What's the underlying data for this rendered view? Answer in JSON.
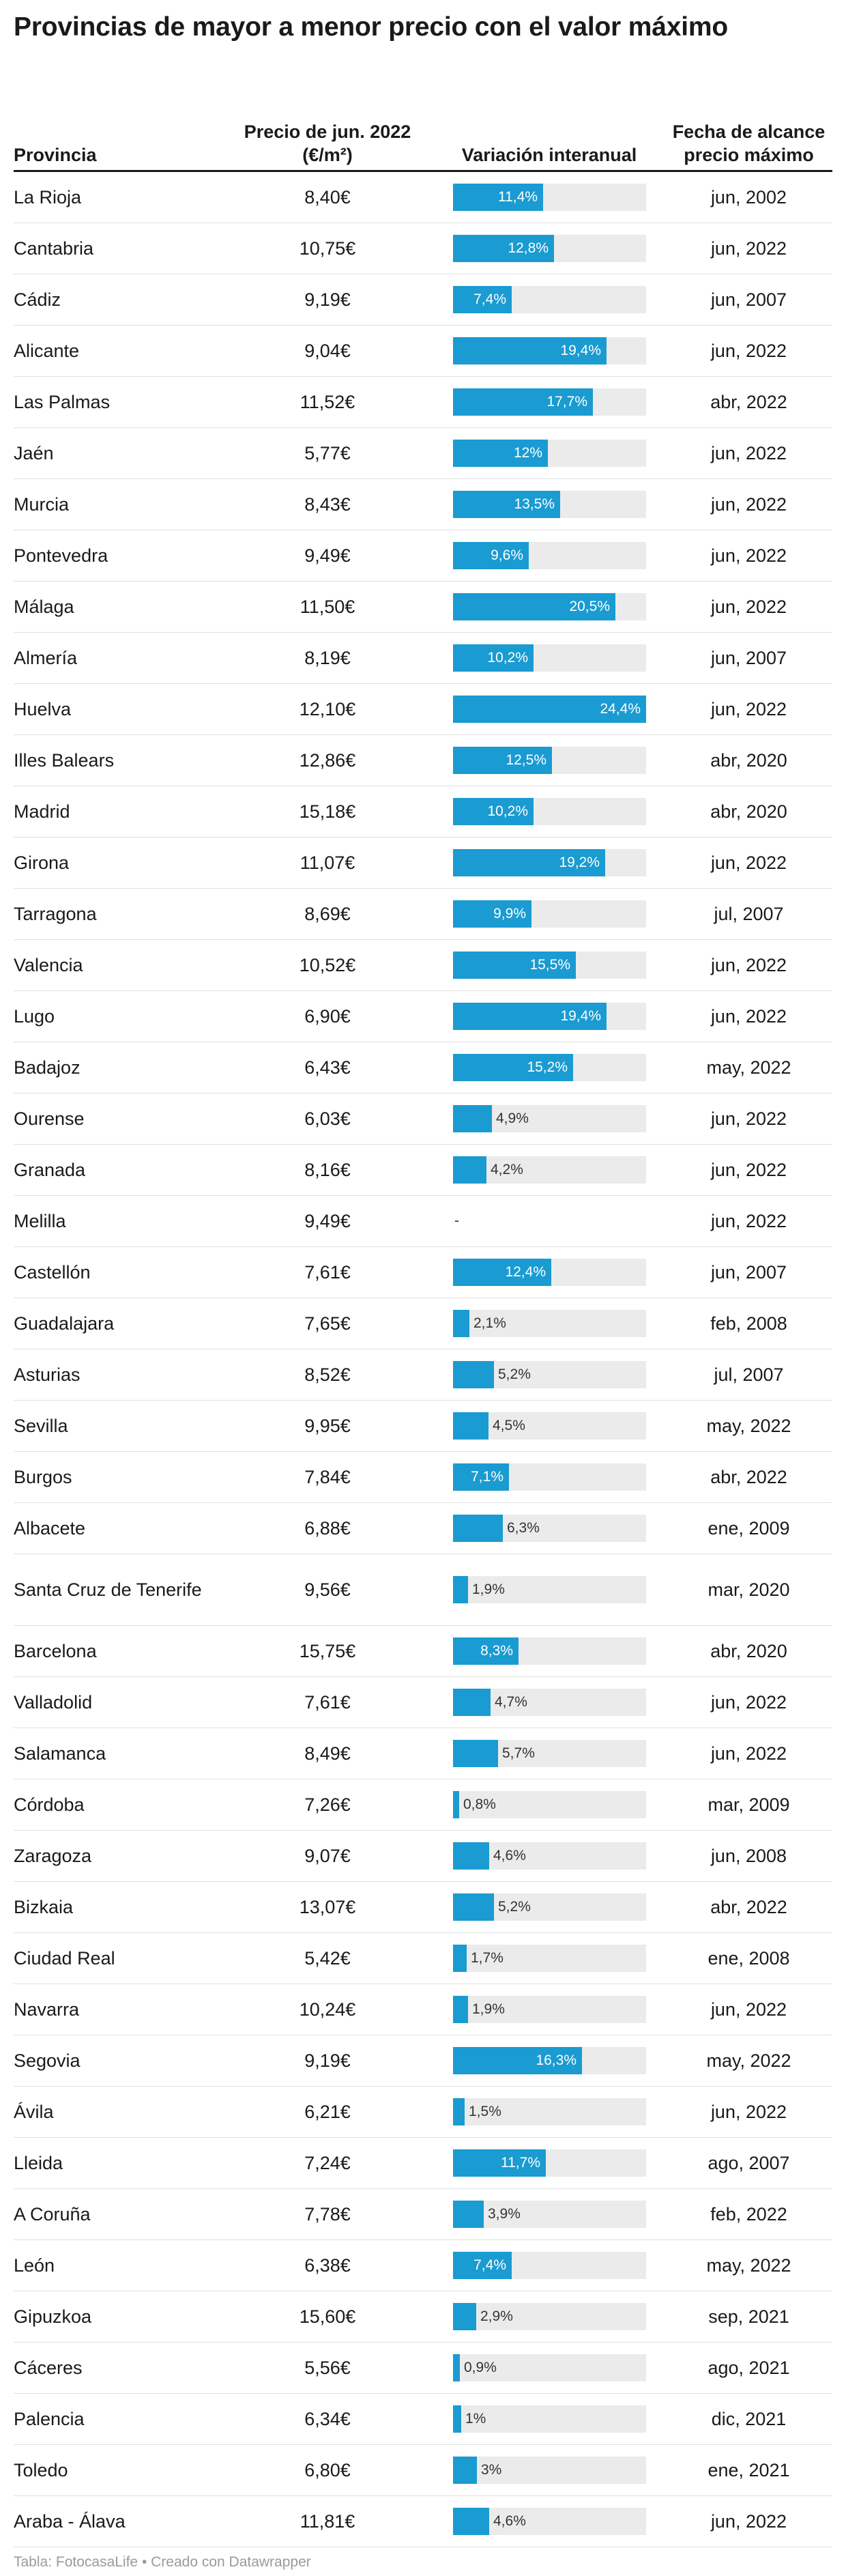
{
  "title": "Provincias de mayor a menor precio con el valor máximo",
  "columns": {
    "provincia": "Provincia",
    "precio": "Precio de jun. 2022 (€/m²)",
    "variacion": "Variación interanual",
    "fecha": "Fecha de alcance precio máximo"
  },
  "footer": "Tabla: FotocasaLife • Creado con Datawrapper",
  "colors": {
    "bar": "#1a9bd1",
    "track": "#ebebeb",
    "text": "#1a1a1a",
    "footer": "#9a9a9a"
  },
  "chart_data": {
    "type": "table",
    "bar_column": "Variación interanual",
    "bar_max": 24.4,
    "rows": [
      {
        "provincia": "La Rioja",
        "precio": "8,40€",
        "variacion": 11.4,
        "variacion_label": "11,4%",
        "fecha": "jun, 2002"
      },
      {
        "provincia": "Cantabria",
        "precio": "10,75€",
        "variacion": 12.8,
        "variacion_label": "12,8%",
        "fecha": "jun, 2022"
      },
      {
        "provincia": "Cádiz",
        "precio": "9,19€",
        "variacion": 7.4,
        "variacion_label": "7,4%",
        "fecha": "jun, 2007"
      },
      {
        "provincia": "Alicante",
        "precio": "9,04€",
        "variacion": 19.4,
        "variacion_label": "19,4%",
        "fecha": "jun, 2022"
      },
      {
        "provincia": "Las Palmas",
        "precio": "11,52€",
        "variacion": 17.7,
        "variacion_label": "17,7%",
        "fecha": "abr, 2022"
      },
      {
        "provincia": "Jaén",
        "precio": "5,77€",
        "variacion": 12,
        "variacion_label": "12%",
        "fecha": "jun, 2022"
      },
      {
        "provincia": "Murcia",
        "precio": "8,43€",
        "variacion": 13.5,
        "variacion_label": "13,5%",
        "fecha": "jun, 2022"
      },
      {
        "provincia": "Pontevedra",
        "precio": "9,49€",
        "variacion": 9.6,
        "variacion_label": "9,6%",
        "fecha": "jun, 2022"
      },
      {
        "provincia": "Málaga",
        "precio": "11,50€",
        "variacion": 20.5,
        "variacion_label": "20,5%",
        "fecha": "jun, 2022"
      },
      {
        "provincia": "Almería",
        "precio": "8,19€",
        "variacion": 10.2,
        "variacion_label": "10,2%",
        "fecha": "jun, 2007"
      },
      {
        "provincia": "Huelva",
        "precio": "12,10€",
        "variacion": 24.4,
        "variacion_label": "24,4%",
        "fecha": "jun, 2022"
      },
      {
        "provincia": "Illes Balears",
        "precio": "12,86€",
        "variacion": 12.5,
        "variacion_label": "12,5%",
        "fecha": "abr, 2020"
      },
      {
        "provincia": "Madrid",
        "precio": "15,18€",
        "variacion": 10.2,
        "variacion_label": "10,2%",
        "fecha": "abr, 2020"
      },
      {
        "provincia": "Girona",
        "precio": "11,07€",
        "variacion": 19.2,
        "variacion_label": "19,2%",
        "fecha": "jun, 2022"
      },
      {
        "provincia": "Tarragona",
        "precio": "8,69€",
        "variacion": 9.9,
        "variacion_label": "9,9%",
        "fecha": "jul, 2007"
      },
      {
        "provincia": "Valencia",
        "precio": "10,52€",
        "variacion": 15.5,
        "variacion_label": "15,5%",
        "fecha": "jun, 2022"
      },
      {
        "provincia": "Lugo",
        "precio": "6,90€",
        "variacion": 19.4,
        "variacion_label": "19,4%",
        "fecha": "jun, 2022"
      },
      {
        "provincia": "Badajoz",
        "precio": "6,43€",
        "variacion": 15.2,
        "variacion_label": "15,2%",
        "fecha": "may, 2022"
      },
      {
        "provincia": "Ourense",
        "precio": "6,03€",
        "variacion": 4.9,
        "variacion_label": "4,9%",
        "fecha": "jun, 2022"
      },
      {
        "provincia": "Granada",
        "precio": "8,16€",
        "variacion": 4.2,
        "variacion_label": "4,2%",
        "fecha": "jun, 2022"
      },
      {
        "provincia": "Melilla",
        "precio": "9,49€",
        "variacion": null,
        "variacion_label": "-",
        "fecha": "jun, 2022"
      },
      {
        "provincia": "Castellón",
        "precio": "7,61€",
        "variacion": 12.4,
        "variacion_label": "12,4%",
        "fecha": "jun, 2007"
      },
      {
        "provincia": "Guadalajara",
        "precio": "7,65€",
        "variacion": 2.1,
        "variacion_label": "2,1%",
        "fecha": "feb, 2008"
      },
      {
        "provincia": "Asturias",
        "precio": "8,52€",
        "variacion": 5.2,
        "variacion_label": "5,2%",
        "fecha": "jul, 2007"
      },
      {
        "provincia": "Sevilla",
        "precio": "9,95€",
        "variacion": 4.5,
        "variacion_label": "4,5%",
        "fecha": "may, 2022"
      },
      {
        "provincia": "Burgos",
        "precio": "7,84€",
        "variacion": 7.1,
        "variacion_label": "7,1%",
        "fecha": "abr, 2022"
      },
      {
        "provincia": "Albacete",
        "precio": "6,88€",
        "variacion": 6.3,
        "variacion_label": "6,3%",
        "fecha": "ene, 2009"
      },
      {
        "provincia": "Santa Cruz de Tenerife",
        "precio": "9,56€",
        "variacion": 1.9,
        "variacion_label": "1,9%",
        "fecha": "mar, 2020"
      },
      {
        "provincia": "Barcelona",
        "precio": "15,75€",
        "variacion": 8.3,
        "variacion_label": "8,3%",
        "fecha": "abr, 2020"
      },
      {
        "provincia": "Valladolid",
        "precio": "7,61€",
        "variacion": 4.7,
        "variacion_label": "4,7%",
        "fecha": "jun, 2022"
      },
      {
        "provincia": "Salamanca",
        "precio": "8,49€",
        "variacion": 5.7,
        "variacion_label": "5,7%",
        "fecha": "jun, 2022"
      },
      {
        "provincia": "Córdoba",
        "precio": "7,26€",
        "variacion": 0.8,
        "variacion_label": "0,8%",
        "fecha": "mar, 2009"
      },
      {
        "provincia": "Zaragoza",
        "precio": "9,07€",
        "variacion": 4.6,
        "variacion_label": "4,6%",
        "fecha": "jun, 2008"
      },
      {
        "provincia": "Bizkaia",
        "precio": "13,07€",
        "variacion": 5.2,
        "variacion_label": "5,2%",
        "fecha": "abr, 2022"
      },
      {
        "provincia": "Ciudad Real",
        "precio": "5,42€",
        "variacion": 1.7,
        "variacion_label": "1,7%",
        "fecha": "ene, 2008"
      },
      {
        "provincia": "Navarra",
        "precio": "10,24€",
        "variacion": 1.9,
        "variacion_label": "1,9%",
        "fecha": "jun, 2022"
      },
      {
        "provincia": "Segovia",
        "precio": "9,19€",
        "variacion": 16.3,
        "variacion_label": "16,3%",
        "fecha": "may, 2022"
      },
      {
        "provincia": "Ávila",
        "precio": "6,21€",
        "variacion": 1.5,
        "variacion_label": "1,5%",
        "fecha": "jun, 2022"
      },
      {
        "provincia": "Lleida",
        "precio": "7,24€",
        "variacion": 11.7,
        "variacion_label": "11,7%",
        "fecha": "ago, 2007"
      },
      {
        "provincia": "A Coruña",
        "precio": "7,78€",
        "variacion": 3.9,
        "variacion_label": "3,9%",
        "fecha": "feb, 2022"
      },
      {
        "provincia": "León",
        "precio": "6,38€",
        "variacion": 7.4,
        "variacion_label": "7,4%",
        "fecha": "may, 2022"
      },
      {
        "provincia": "Gipuzkoa",
        "precio": "15,60€",
        "variacion": 2.9,
        "variacion_label": "2,9%",
        "fecha": "sep, 2021"
      },
      {
        "provincia": "Cáceres",
        "precio": "5,56€",
        "variacion": 0.9,
        "variacion_label": "0,9%",
        "fecha": "ago, 2021"
      },
      {
        "provincia": "Palencia",
        "precio": "6,34€",
        "variacion": 1,
        "variacion_label": "1%",
        "fecha": "dic, 2021"
      },
      {
        "provincia": "Toledo",
        "precio": "6,80€",
        "variacion": 3,
        "variacion_label": "3%",
        "fecha": "ene, 2021"
      },
      {
        "provincia": "Araba - Álava",
        "precio": "11,81€",
        "variacion": 4.6,
        "variacion_label": "4,6%",
        "fecha": "jun, 2022"
      }
    ]
  }
}
